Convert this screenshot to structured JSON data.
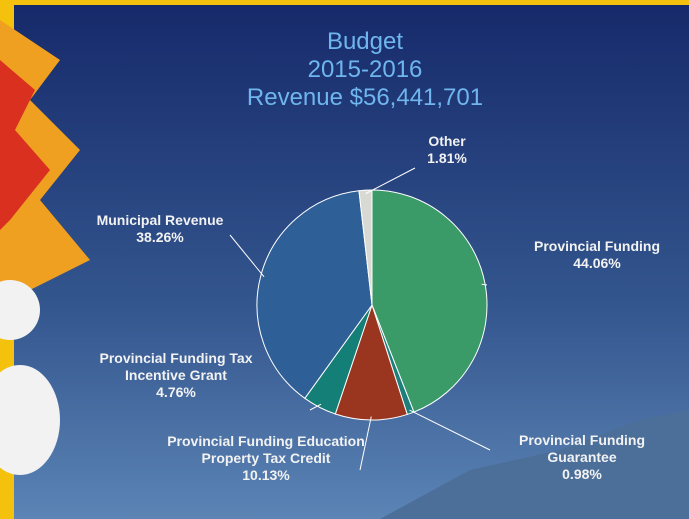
{
  "chart_data": {
    "type": "pie",
    "title": [
      "Budget",
      "2015-2016",
      "Revenue $56,441,701"
    ],
    "categories": [
      "Provincial Funding",
      "Provincial Funding Guarantee",
      "Provincial Funding Education Property Tax Credit",
      "Provincial Funding Tax Incentive Grant",
      "Municipal Revenue",
      "Other"
    ],
    "values": [
      44.06,
      0.98,
      10.13,
      4.76,
      38.26,
      1.81
    ],
    "value_labels": [
      "44.06%",
      "0.98%",
      "10.13%",
      "4.76%",
      "38.26%",
      "1.81%"
    ],
    "colors": [
      "#3a9a68",
      "#1c7f7b",
      "#9a3620",
      "#147f76",
      "#2f5f97",
      "#d9d9d4"
    ]
  }
}
